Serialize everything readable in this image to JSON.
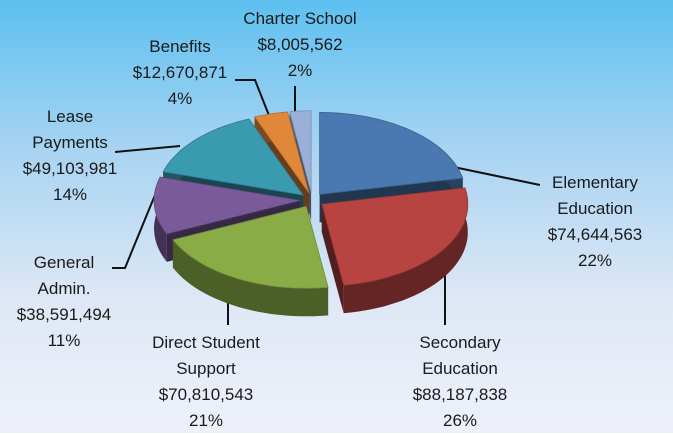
{
  "chart_data": {
    "type": "pie3d",
    "categories": [
      "Elementary Education",
      "Secondary Education",
      "Direct Student Support",
      "General Admin.",
      "Lease Payments",
      "Benefits",
      "Charter School"
    ],
    "values": [
      74644563,
      88187838,
      70810543,
      38591494,
      49103981,
      12670871,
      8005562
    ],
    "value_labels": [
      "$74,644,563",
      "$88,187,838",
      "$70,810,543",
      "$38,591,494",
      "$49,103,981",
      "$12,670,871",
      "$8,005,562"
    ],
    "percents": [
      22,
      26,
      21,
      11,
      14,
      4,
      2
    ],
    "percent_labels": [
      "22%",
      "26%",
      "21%",
      "11%",
      "14%",
      "4%",
      "2%"
    ],
    "colors": [
      "#4a78b0",
      "#b84442",
      "#8aac46",
      "#7a5a9a",
      "#3a9ab0",
      "#e0873a",
      "#9ab0d8"
    ]
  }
}
